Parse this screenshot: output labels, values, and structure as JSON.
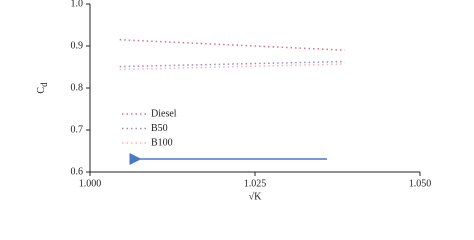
{
  "chart_data": {
    "type": "line",
    "x_label": "√K",
    "y_label": "C",
    "y_label_sub": "d",
    "xlim": [
      1.0,
      1.05
    ],
    "xticks": [
      {
        "value": 1.0,
        "label": "1.000"
      },
      {
        "value": 1.025,
        "label": "1.025"
      },
      {
        "value": 1.05,
        "label": "1.050"
      }
    ],
    "ylim": [
      0.6,
      1.0
    ],
    "yticks": [
      0.6,
      0.7,
      0.8,
      0.9,
      {
        "value": 1.0,
        "label": "1.0"
      }
    ],
    "series": [
      {
        "name": "Diesel",
        "color": "#d9728a",
        "x": [
          1.0045,
          1.0386
        ],
        "values": [
          0.915,
          0.89
        ]
      },
      {
        "name": "B50",
        "color": "#9a8fb5",
        "x": [
          1.0045,
          1.0386
        ],
        "values": [
          0.851,
          0.863
        ]
      },
      {
        "name": "B100",
        "color": "#f0b4c0",
        "x": [
          1.0045,
          1.0386
        ],
        "values": [
          0.844,
          0.857
        ]
      }
    ]
  }
}
